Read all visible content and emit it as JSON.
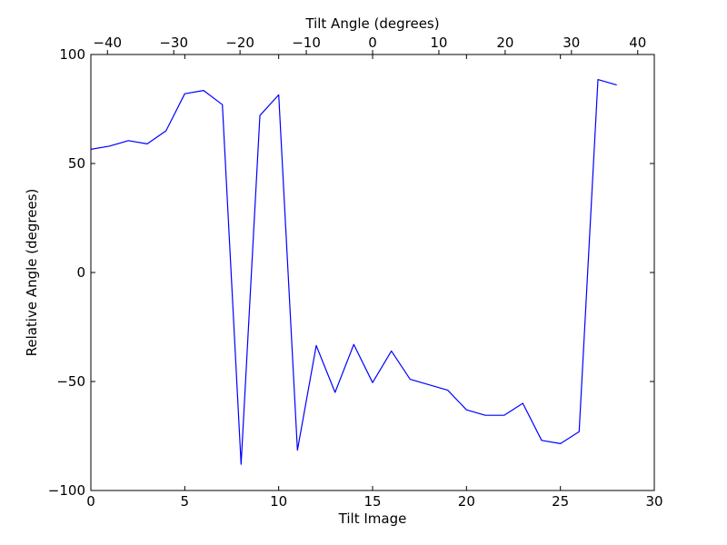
{
  "chart_data": {
    "type": "line",
    "title": "",
    "xlabel": "Tilt Image",
    "ylabel": "Relative Angle (degrees)",
    "x2label": "Tilt Angle (degrees)",
    "xlim": [
      0,
      30
    ],
    "ylim": [
      -100,
      100
    ],
    "x2lim": [
      -42.5,
      42.5
    ],
    "xticks": [
      0,
      5,
      10,
      15,
      20,
      25,
      30
    ],
    "yticks": [
      -100,
      -50,
      0,
      50,
      100
    ],
    "x2ticks": [
      -40,
      -30,
      -20,
      -10,
      0,
      10,
      20,
      30,
      40
    ],
    "grid": false,
    "series": [
      {
        "color": "#0000ff",
        "x": [
          0,
          1,
          2,
          3,
          4,
          5,
          6,
          7,
          8,
          9,
          10,
          11,
          12,
          13,
          14,
          15,
          16,
          17,
          18,
          19,
          20,
          21,
          22,
          23,
          24,
          25,
          26,
          27,
          28
        ],
        "y": [
          56.5,
          58,
          60.5,
          59,
          65,
          82,
          83.5,
          77,
          -88,
          72,
          81.5,
          -81.5,
          -33.5,
          -55,
          -33,
          -50.5,
          -36,
          -49,
          -51.5,
          -54,
          -63,
          -65.5,
          -65.5,
          -60,
          -77,
          -78.5,
          -73,
          88.5,
          86
        ]
      }
    ]
  }
}
